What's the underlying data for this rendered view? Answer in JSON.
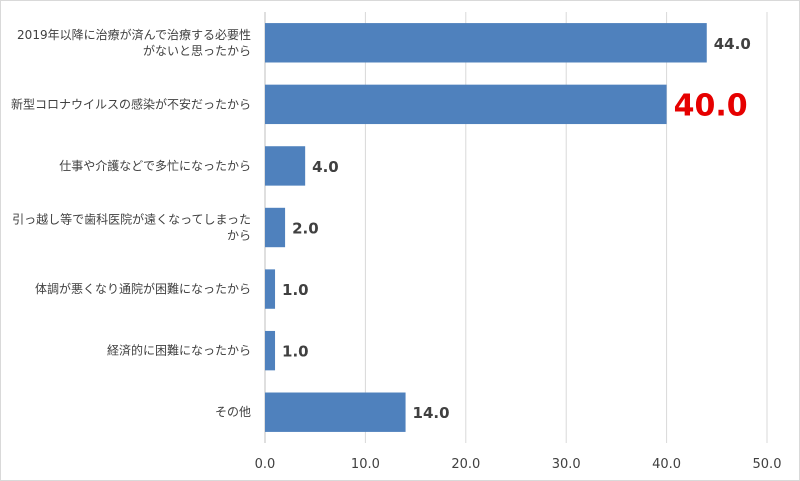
{
  "chart_data": {
    "type": "bar",
    "orientation": "horizontal",
    "categories": [
      [
        "2019年以降に治療が済んで治療する必要性",
        "がないと思ったから"
      ],
      [
        "新型コロナウイルスの感染が不安だったから"
      ],
      [
        "仕事や介護などで多忙になったから"
      ],
      [
        "引っ越し等で歯科医院が遠くなってしまった",
        "から"
      ],
      [
        "体調が悪くなり通院が困難になったから"
      ],
      [
        "経済的に困難になったから"
      ],
      [
        "その他"
      ]
    ],
    "values": [
      44.0,
      40.0,
      4.0,
      2.0,
      1.0,
      1.0,
      14.0
    ],
    "data_labels": [
      "44.0",
      "40.0",
      "4.0",
      "2.0",
      "1.0",
      "1.0",
      "14.0"
    ],
    "highlight_index": 1,
    "xlim": [
      0,
      50
    ],
    "xticks": [
      "0.0",
      "10.0",
      "20.0",
      "30.0",
      "40.0",
      "50.0"
    ],
    "grid": "vertical",
    "bar_color": "#4f81bd",
    "highlight_label_color": "#e60000",
    "title": "",
    "xlabel": "",
    "ylabel": ""
  }
}
